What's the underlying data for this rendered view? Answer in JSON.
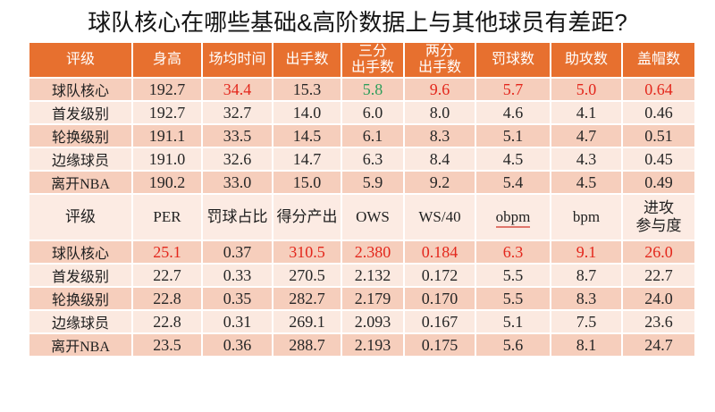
{
  "title": "球队核心在哪些基础&高阶数据上与其他球员有差距?",
  "colors": {
    "header_bg": "#e7702f",
    "subheader_bg": "#fcebe3",
    "row_dark": "#f6cebc",
    "row_light": "#fbe9e0",
    "red": "#e3271c",
    "green": "#2e9e5b",
    "text": "#262626",
    "header_text": "#ffffff"
  },
  "chart_data": [
    {
      "type": "table",
      "title": "基础数据",
      "columns": [
        "评级",
        "身高",
        "场均时间",
        "出手数",
        "三分\n出手数",
        "两分\n出手数",
        "罚球数",
        "助攻数",
        "盖帽数"
      ],
      "rows": [
        {
          "label": "球队核心",
          "values": [
            "192.7",
            "34.4",
            "15.3",
            "5.8",
            "9.6",
            "5.7",
            "5.0",
            "0.64"
          ],
          "value_colors": [
            null,
            "red",
            null,
            "green",
            "red",
            "red",
            "red",
            "red"
          ]
        },
        {
          "label": "首发级别",
          "values": [
            "192.7",
            "32.7",
            "14.0",
            "6.0",
            "8.0",
            "4.6",
            "4.1",
            "0.46"
          ],
          "value_colors": [
            null,
            null,
            null,
            null,
            null,
            null,
            null,
            null
          ]
        },
        {
          "label": "轮换级别",
          "values": [
            "191.1",
            "33.5",
            "14.5",
            "6.1",
            "8.3",
            "5.1",
            "4.7",
            "0.51"
          ],
          "value_colors": [
            null,
            null,
            null,
            null,
            null,
            null,
            null,
            null
          ]
        },
        {
          "label": "边缘球员",
          "values": [
            "191.0",
            "32.6",
            "14.7",
            "6.3",
            "8.4",
            "4.5",
            "4.3",
            "0.45"
          ],
          "value_colors": [
            null,
            null,
            null,
            null,
            null,
            null,
            null,
            null
          ]
        },
        {
          "label": "离开NBA",
          "values": [
            "190.2",
            "33.0",
            "15.0",
            "5.9",
            "9.2",
            "5.4",
            "4.5",
            "0.49"
          ],
          "value_colors": [
            null,
            null,
            null,
            null,
            null,
            null,
            null,
            null
          ]
        }
      ]
    },
    {
      "type": "table",
      "title": "高阶数据",
      "columns": [
        "评级",
        "PER",
        "罚球占比",
        "得分产出",
        "OWS",
        "WS/40",
        "obpm",
        "bpm",
        "进攻\n参与度"
      ],
      "underline_red": [
        "obpm"
      ],
      "rows": [
        {
          "label": "球队核心",
          "values": [
            "25.1",
            "0.37",
            "310.5",
            "2.380",
            "0.184",
            "6.3",
            "9.1",
            "26.0"
          ],
          "value_colors": [
            "red",
            null,
            "red",
            "red",
            "red",
            "red",
            "red",
            "red"
          ]
        },
        {
          "label": "首发级别",
          "values": [
            "22.7",
            "0.33",
            "270.5",
            "2.132",
            "0.172",
            "5.5",
            "8.7",
            "22.7"
          ],
          "value_colors": [
            null,
            null,
            null,
            null,
            null,
            null,
            null,
            null
          ]
        },
        {
          "label": "轮换级别",
          "values": [
            "22.8",
            "0.35",
            "282.7",
            "2.179",
            "0.170",
            "5.5",
            "8.3",
            "24.0"
          ],
          "value_colors": [
            null,
            null,
            null,
            null,
            null,
            null,
            null,
            null
          ]
        },
        {
          "label": "边缘球员",
          "values": [
            "22.8",
            "0.31",
            "269.1",
            "2.093",
            "0.167",
            "5.1",
            "7.5",
            "23.6"
          ],
          "value_colors": [
            null,
            null,
            null,
            null,
            null,
            null,
            null,
            null
          ]
        },
        {
          "label": "离开NBA",
          "values": [
            "23.5",
            "0.36",
            "288.7",
            "2.193",
            "0.175",
            "5.6",
            "8.1",
            "24.7"
          ],
          "value_colors": [
            null,
            null,
            null,
            null,
            null,
            null,
            null,
            null
          ]
        }
      ]
    }
  ]
}
